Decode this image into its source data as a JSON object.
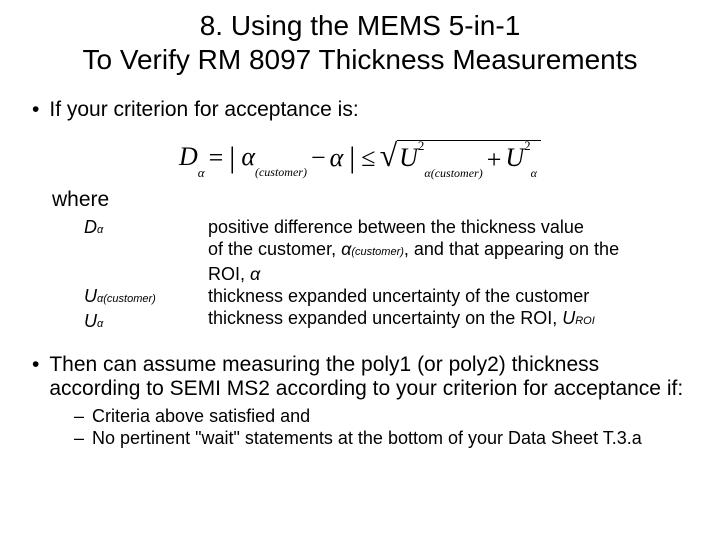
{
  "title": {
    "line1": "8.  Using the MEMS 5-in-1",
    "line2": "To Verify RM 8097 Thickness Measurements"
  },
  "bullet1": "If your criterion for acceptance is:",
  "equation": {
    "D": "D",
    "alpha": "α",
    "eq1": "=",
    "bar": "|",
    "customer_sub": "(customer)",
    "minus": "−",
    "leq": "≤",
    "U": "U",
    "sq": "2",
    "alpha_customer_sub": "α(customer)",
    "plus": "+",
    "alpha_sub": "α"
  },
  "where_label": "where",
  "defs": {
    "sym1_base": "D",
    "sym1_sub": "α",
    "sym2_base": "U",
    "sym2_sub": "α(customer)",
    "sym3_base": "U",
    "sym3_sub": "α",
    "text1a": "positive difference between the thickness value",
    "text1b_pre": "of the customer, ",
    "text1b_alpha": "α",
    "text1b_sub": "(customer)",
    "text1b_post": ", and that appearing on the",
    "text1c_pre": "ROI, ",
    "text1c_alpha": "α",
    "text2": "thickness expanded uncertainty of the customer",
    "text3_pre": "thickness expanded uncertainty on the ROI, ",
    "text3_U": "U",
    "text3_sub": "ROI"
  },
  "bullet2": "Then can assume measuring the poly1 (or poly2) thickness according to SEMI MS2 according to your criterion for acceptance if:",
  "sub1": "Criteria above satisfied and",
  "sub2": "No  pertinent \"wait\" statements at the bottom of your Data Sheet T.3.a"
}
